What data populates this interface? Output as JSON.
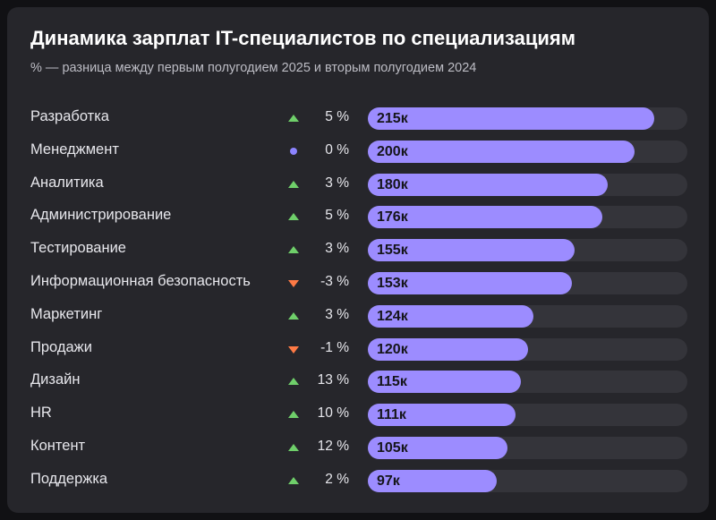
{
  "chart_data": {
    "type": "bar",
    "title": "Динамика зарплат IT-специалистов по специализациям",
    "subtitle": "% — разница между первым полугодием 2025 и вторым полугодием 2024",
    "value_suffix": "к",
    "change_suffix": " %",
    "max_value": 240,
    "colors": {
      "bar": "#9c8cff",
      "track": "#34343a",
      "up": "#6fcf6a",
      "down": "#ff7a45",
      "flat": "#8c84ff"
    },
    "categories": [
      "Разработка",
      "Менеджмент",
      "Аналитика",
      "Администрирование",
      "Тестирование",
      "Информационная безопасность",
      "Маркетинг",
      "Продажи",
      "Дизайн",
      "HR",
      "Контент",
      "Поддержка"
    ],
    "values": [
      215,
      200,
      180,
      176,
      155,
      153,
      124,
      120,
      115,
      111,
      105,
      97
    ],
    "changes": [
      5,
      0,
      3,
      5,
      3,
      -3,
      3,
      -1,
      13,
      10,
      12,
      2
    ]
  }
}
